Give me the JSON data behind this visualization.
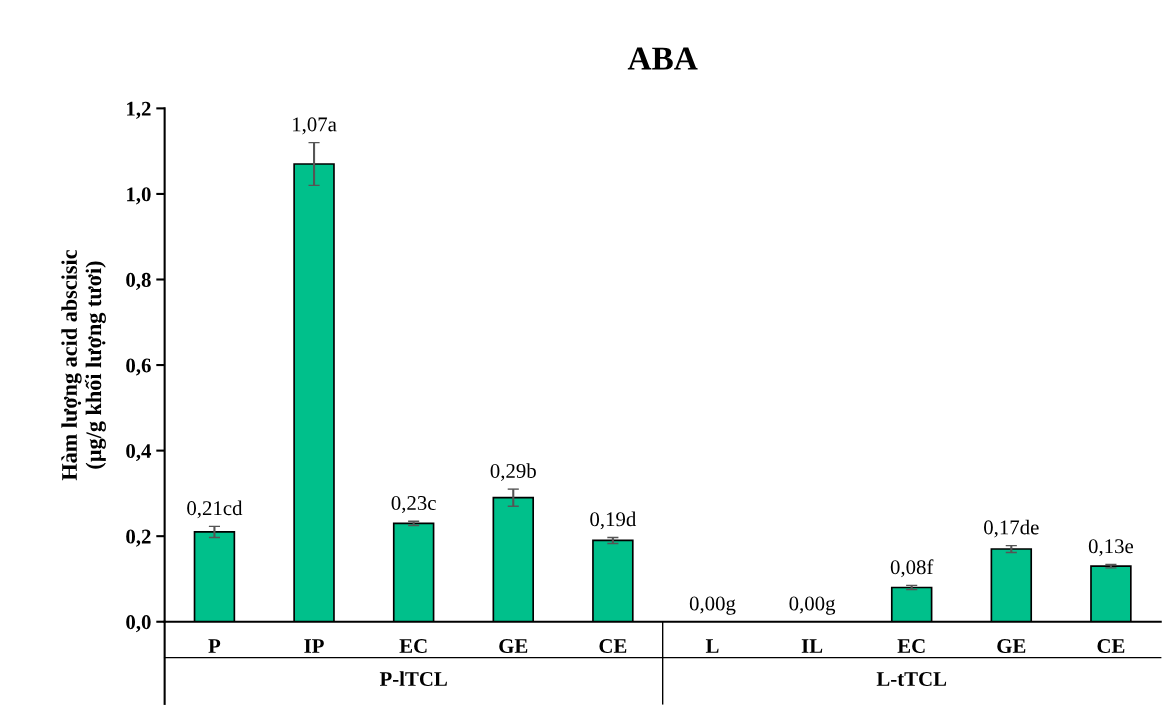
{
  "chart_data": {
    "type": "bar",
    "title": "ABA",
    "ylabel": "Hàm lượng acid abscisic\n(µg/g khối lượng tươi)",
    "categories": [
      "P",
      "IP",
      "EC",
      "GE",
      "CE",
      "L",
      "IL",
      "EC",
      "GE",
      "CE"
    ],
    "values": [
      0.21,
      1.07,
      0.23,
      0.29,
      0.19,
      0.0,
      0.0,
      0.08,
      0.17,
      0.13
    ],
    "errors": [
      0.013,
      0.05,
      0.005,
      0.02,
      0.007,
      null,
      null,
      0.005,
      0.008,
      0.004
    ],
    "value_labels": [
      "0,21cd",
      "1,07a",
      "0,23c",
      "0,29b",
      "0,19d",
      "0,00g",
      "0,00g",
      "0,08f",
      "0,17de",
      "0,13e"
    ],
    "color": "#00c08b",
    "ylim": [
      0,
      1.2
    ],
    "yticks": [
      {
        "value": 0,
        "label": "0,0"
      },
      {
        "value": 0.2,
        "label": "0,2"
      },
      {
        "value": 0.4,
        "label": "0,4"
      },
      {
        "value": 0.6,
        "label": "0,6"
      },
      {
        "value": 0.8,
        "label": "0,8"
      },
      {
        "value": 1.0,
        "label": "1,0"
      },
      {
        "value": 1.2,
        "label": "1,2"
      }
    ],
    "annotations": [
      "P-lTCL",
      "L-tTCL"
    ],
    "grid": false
  }
}
